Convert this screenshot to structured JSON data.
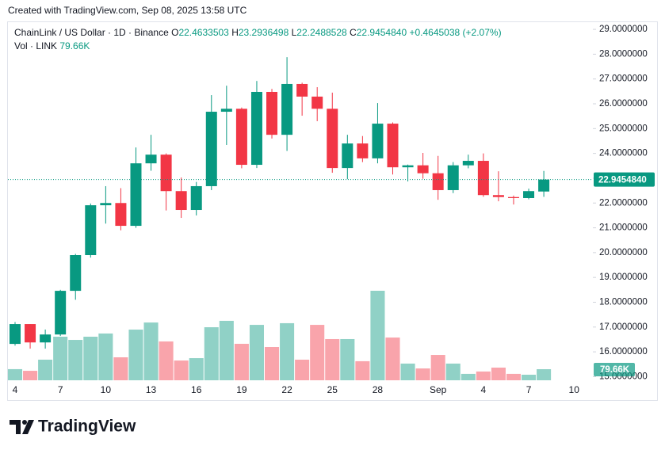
{
  "header": "Created with TradingView.com, Sep 08, 2025 13:58 UTC",
  "brand": "TradingView",
  "chart_data": {
    "type": "candlestick",
    "legend": {
      "symbol": "ChainLink / US Dollar · 1D · Binance",
      "o_label": "O",
      "open": "22.4633503",
      "h_label": "H",
      "high": "23.2936498",
      "l_label": "L",
      "low": "22.2488528",
      "c_label": "C",
      "close": "22.9454840",
      "change": "+0.4645038 (+2.07%)",
      "vol_label": "Vol · LINK",
      "volume": "79.66K"
    },
    "categories": [
      "4",
      null,
      null,
      "7",
      null,
      null,
      "10",
      null,
      null,
      "13",
      null,
      null,
      "16",
      null,
      null,
      "19",
      null,
      null,
      "22",
      null,
      null,
      "25",
      null,
      null,
      "28",
      null,
      null,
      null,
      "Sep",
      null,
      null,
      "4",
      null,
      null,
      "7",
      null,
      null,
      "10"
    ],
    "open": [
      16.32,
      17.12,
      16.38,
      16.7,
      18.46,
      19.9,
      21.91,
      22.0,
      21.08,
      23.6,
      23.95,
      22.48,
      21.72,
      22.68,
      25.68,
      25.8,
      23.54,
      26.48,
      24.75,
      26.8,
      26.29,
      25.8,
      23.41,
      24.4,
      23.8,
      25.2,
      23.44,
      23.52,
      23.2,
      22.52,
      23.52,
      23.7,
      22.32,
      22.24,
      22.2,
      22.4633503,
      null,
      null
    ],
    "high": [
      17.2,
      17.12,
      16.9,
      18.5,
      19.95,
      21.98,
      22.68,
      22.6,
      24.24,
      24.75,
      24.0,
      23.03,
      22.85,
      26.35,
      26.73,
      25.85,
      26.92,
      26.6,
      27.88,
      26.85,
      26.67,
      26.45,
      24.75,
      24.7,
      26.03,
      25.25,
      23.55,
      24.02,
      23.9,
      23.65,
      23.95,
      24.0,
      23.28,
      22.3,
      22.58,
      23.2936498,
      null,
      null
    ],
    "low": [
      16.25,
      16.13,
      16.13,
      16.64,
      18.1,
      19.8,
      21.17,
      20.9,
      21.0,
      23.3,
      21.7,
      21.4,
      21.5,
      22.52,
      24.34,
      23.4,
      23.41,
      24.6,
      24.1,
      25.52,
      25.3,
      23.22,
      22.96,
      23.65,
      23.6,
      23.15,
      22.87,
      22.98,
      22.13,
      22.4,
      23.4,
      22.25,
      22.07,
      21.94,
      22.15,
      22.2488528,
      null,
      null
    ],
    "close": [
      17.12,
      16.38,
      16.7,
      18.46,
      19.9,
      21.91,
      22.0,
      21.08,
      23.6,
      23.95,
      22.48,
      21.72,
      22.68,
      25.68,
      25.8,
      23.54,
      26.48,
      24.75,
      26.8,
      26.29,
      25.8,
      23.41,
      24.4,
      23.8,
      25.2,
      23.44,
      23.52,
      23.2,
      22.52,
      23.52,
      23.7,
      22.32,
      22.24,
      22.2,
      22.48,
      22.945484,
      null,
      null
    ],
    "volume": [
      80,
      68,
      148,
      313,
      290,
      313,
      336,
      165,
      364,
      415,
      279,
      142,
      159,
      381,
      427,
      262,
      398,
      239,
      410,
      148,
      398,
      296,
      296,
      137,
      643,
      307,
      120,
      85,
      182,
      120,
      46,
      63,
      91,
      46,
      40,
      79.66,
      null,
      null
    ],
    "up_color": "#089981",
    "down_color": "#f23645",
    "ylim": [
      14.79,
      29.29
    ],
    "yticks": [
      {
        "value": 15,
        "label": "15.0000000"
      },
      {
        "value": 16,
        "label": "16.0000000"
      },
      {
        "value": 17,
        "label": "17.0000000"
      },
      {
        "value": 18,
        "label": "18.0000000"
      },
      {
        "value": 19,
        "label": "19.0000000"
      },
      {
        "value": 20,
        "label": "20.0000000"
      },
      {
        "value": 21,
        "label": "21.0000000"
      },
      {
        "value": 22,
        "label": "22.0000000"
      },
      {
        "value": 23,
        "label": "23.0000000"
      },
      {
        "value": 24,
        "label": "24.0000000"
      },
      {
        "value": 25,
        "label": "25.0000000"
      },
      {
        "value": 26,
        "label": "26.0000000"
      },
      {
        "value": 27,
        "label": "27.0000000"
      },
      {
        "value": 28,
        "label": "28.0000000"
      },
      {
        "value": 29,
        "label": "29.0000000"
      }
    ]
  }
}
